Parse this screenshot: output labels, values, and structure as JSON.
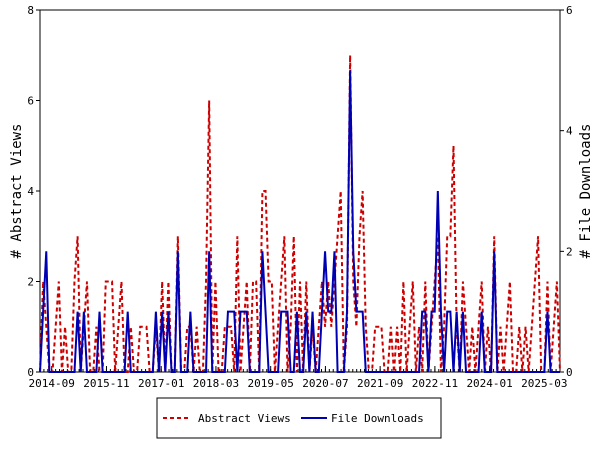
{
  "chart_data": {
    "type": "line",
    "title": "",
    "xlabel": "",
    "ylabel_left": "# Abstract Views",
    "ylabel_right": "# File Downloads",
    "ylim_left": [
      0,
      8
    ],
    "ylim_right": [
      0,
      6
    ],
    "yticks_left": [
      "0",
      "2",
      "4",
      "6",
      "8"
    ],
    "yticks_right": [
      "0",
      "2",
      "4",
      "6"
    ],
    "x_start": "2014-06",
    "x_end": "2025-07",
    "xtick_labels": [
      "2014-09",
      "2015-11",
      "2017-01",
      "2018-03",
      "2019-05",
      "2020-07",
      "2021-09",
      "2022-11",
      "2024-01",
      "2025-03"
    ],
    "grid": false,
    "legend_position": "bottom",
    "colors": {
      "abstract_views": "#cc0000",
      "file_downloads": "#0000b3"
    },
    "series": [
      {
        "name": "Abstract Views",
        "axis": "left",
        "style": "dashed",
        "values": [
          0,
          2,
          1,
          0,
          0,
          1,
          2,
          0,
          1,
          0,
          0,
          2,
          3,
          0,
          1,
          2,
          0,
          0,
          1,
          0,
          0,
          2,
          2,
          2,
          0,
          1,
          2,
          0,
          0,
          1,
          0,
          0,
          1,
          1,
          1,
          0,
          0,
          1,
          0,
          2,
          0,
          2,
          0,
          0,
          3,
          0,
          0,
          1,
          1,
          0,
          1,
          0,
          0,
          2,
          6,
          0,
          2,
          0,
          0,
          1,
          1,
          1,
          0,
          3,
          0,
          1,
          2,
          0,
          2,
          2,
          0,
          4,
          4,
          2,
          2,
          0,
          1,
          2,
          3,
          0,
          1,
          3,
          0,
          2,
          0,
          2,
          0,
          1,
          0,
          1,
          2,
          1,
          2,
          1,
          2,
          3,
          4,
          0,
          1,
          7,
          2,
          1,
          3,
          4,
          1,
          0,
          0,
          1,
          1,
          1,
          0,
          0,
          1,
          0,
          1,
          0,
          2,
          0,
          1,
          2,
          0,
          1,
          0,
          2,
          0,
          1,
          2,
          3,
          0,
          1,
          3,
          3,
          5,
          1,
          0,
          2,
          1,
          0,
          1,
          0,
          1,
          2,
          0,
          1,
          0,
          3,
          0,
          1,
          0,
          1,
          2,
          0,
          0,
          1,
          0,
          1,
          0,
          1,
          2,
          3,
          0,
          0,
          2,
          0,
          1,
          2,
          0
        ]
      },
      {
        "name": "File Downloads",
        "axis": "right",
        "style": "solid",
        "values": [
          0,
          1,
          2,
          0,
          0,
          0,
          0,
          0,
          0,
          0,
          0,
          0,
          1,
          0,
          1,
          0,
          0,
          0,
          0,
          1,
          0,
          0,
          0,
          0,
          0,
          0,
          0,
          0,
          1,
          0,
          0,
          0,
          0,
          0,
          0,
          0,
          0,
          1,
          0,
          1,
          0,
          1,
          0,
          0,
          2,
          0,
          0,
          0,
          1,
          0,
          0,
          0,
          0,
          0,
          2,
          0,
          0,
          0,
          0,
          0,
          1,
          1,
          1,
          0,
          1,
          1,
          1,
          0,
          0,
          0,
          0,
          2,
          1,
          0,
          0,
          0,
          0,
          1,
          1,
          1,
          0,
          0,
          1,
          0,
          0,
          1,
          0,
          1,
          0,
          0,
          1,
          2,
          1,
          1,
          2,
          0,
          0,
          0,
          1,
          5,
          2,
          1,
          1,
          1,
          0,
          0,
          0,
          0,
          0,
          0,
          0,
          0,
          0,
          0,
          0,
          0,
          0,
          0,
          0,
          0,
          0,
          0,
          1,
          1,
          0,
          1,
          1,
          3,
          1,
          0,
          1,
          1,
          0,
          1,
          0,
          1,
          0,
          0,
          0,
          0,
          0,
          1,
          0,
          0,
          0,
          2,
          0,
          0,
          0,
          0,
          0,
          0,
          0,
          0,
          0,
          0,
          0,
          0,
          0,
          0,
          0,
          0,
          1,
          0,
          0,
          0,
          0
        ]
      }
    ]
  }
}
